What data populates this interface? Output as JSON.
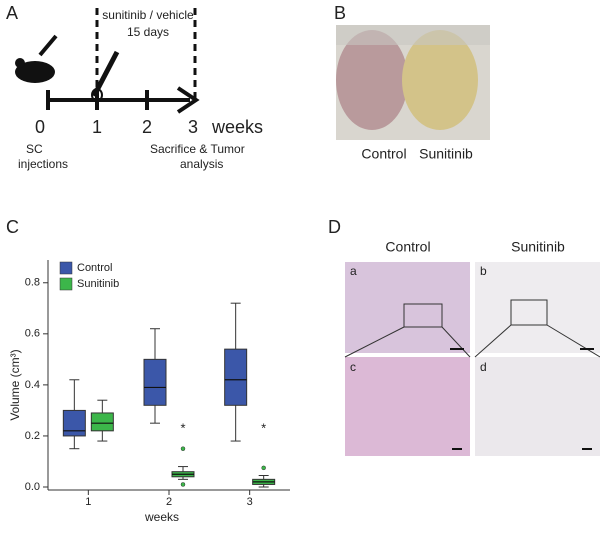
{
  "panel_a": {
    "label": "A",
    "treatment": "sunitinib / vehicle",
    "duration": "15 days",
    "timeline": [
      "0",
      "1",
      "2",
      "3"
    ],
    "unit": "weeks",
    "start_note": [
      "SC",
      "injections"
    ],
    "end_note": [
      "Sacrifice & Tumor",
      "analysis"
    ]
  },
  "panel_b": {
    "label": "B",
    "captions": [
      "Control",
      "Sunitinib"
    ]
  },
  "panel_d": {
    "label": "D",
    "columns": [
      "Control",
      "Sunitinib"
    ],
    "images": [
      "a",
      "b",
      "c",
      "d"
    ]
  },
  "chart_data": {
    "type": "box",
    "panel_label": "C",
    "x_label": "weeks",
    "y_label": "Volume (cm³)",
    "categories": [
      "1",
      "2",
      "3"
    ],
    "ylim": [
      0,
      0.85
    ],
    "yticks": [
      {
        "value": 0,
        "label": "0.0"
      },
      0.2,
      0.4,
      0.6,
      0.8
    ],
    "legend": "upper left",
    "significance": [
      null,
      "*",
      "*"
    ],
    "series": [
      {
        "name": "Control",
        "color": "#3b57a9",
        "min": [
          0.15,
          0.25,
          0.18
        ],
        "q1": [
          0.2,
          0.32,
          0.32
        ],
        "median": [
          0.22,
          0.39,
          0.42
        ],
        "q3": [
          0.3,
          0.5,
          0.54
        ],
        "max": [
          0.42,
          0.62,
          0.72
        ],
        "outliers": [
          [],
          [],
          []
        ]
      },
      {
        "name": "Sunitinib",
        "color": "#3cb64a",
        "min": [
          0.18,
          0.03,
          0
        ],
        "q1": [
          0.22,
          0.04,
          0.01
        ],
        "median": [
          0.25,
          0.05,
          0.02
        ],
        "q3": [
          0.29,
          0.06,
          0.03
        ],
        "max": [
          0.34,
          0.08,
          0.045
        ],
        "outliers": [
          [],
          [
            0.15,
            0.01
          ],
          [
            0.075
          ]
        ]
      }
    ]
  }
}
